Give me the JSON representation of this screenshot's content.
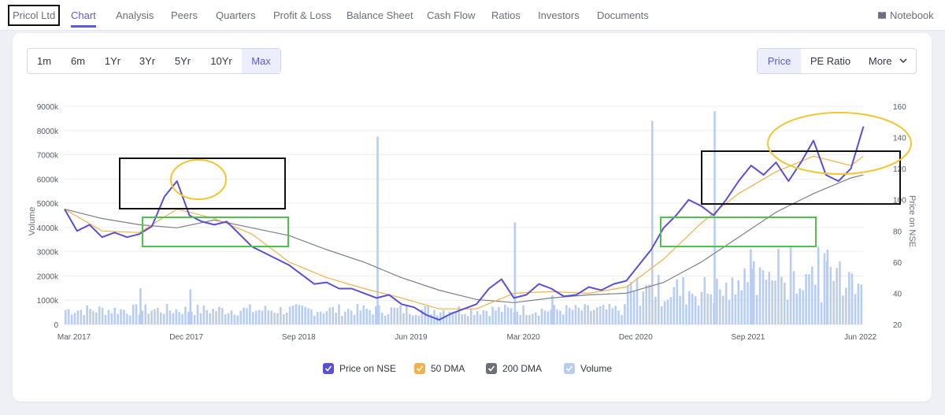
{
  "nav": {
    "brand": "Pricol Ltd",
    "items": [
      "Chart",
      "Analysis",
      "Peers",
      "Quarters",
      "Profit & Loss",
      "Balance Sheet",
      "Cash Flow",
      "Ratios",
      "Investors",
      "Documents"
    ],
    "active": "Chart",
    "notebook": "Notebook"
  },
  "periods": {
    "items": [
      "1m",
      "6m",
      "1Yr",
      "3Yr",
      "5Yr",
      "10Yr",
      "Max"
    ],
    "active": "Max"
  },
  "metrics": {
    "price": "Price",
    "pe": "PE Ratio",
    "more": "More"
  },
  "colors": {
    "accent": "#5b5cd6",
    "price": "#5a4fd8",
    "dma50": "#f2b24a",
    "dma200": "#7b8088",
    "volume": "#b9cdf3",
    "highlight_box": "#111111",
    "support_box": "#4cc44c",
    "circle": "#f2c631"
  },
  "icons": {
    "notebook": "book-icon",
    "more": "chevron-down-icon",
    "legend_check": "check-icon"
  },
  "chart_data": {
    "type": "line",
    "title": "",
    "ylabel_left": "Volume",
    "ylabel_right": "Price on NSE",
    "y_left_ticks": [
      "0",
      "1000k",
      "2000k",
      "3000k",
      "4000k",
      "5000k",
      "6000k",
      "7000k",
      "8000k",
      "9000k"
    ],
    "y_right_ticks": [
      "20",
      "40",
      "60",
      "80",
      "100",
      "120",
      "140",
      "160"
    ],
    "x_ticks": [
      "Mar 2017",
      "Dec 2017",
      "Sep 2018",
      "Jun 2019",
      "Mar 2020",
      "Dec 2020",
      "Sep 2021",
      "Jun 2022"
    ],
    "y_left_range": [
      0,
      9000000
    ],
    "y_right_range": [
      20,
      160
    ],
    "x_range_months": [
      "Mar 2017",
      "Jul 2022"
    ],
    "grid": true,
    "legend_position": "bottom",
    "series": [
      {
        "name": "Price on NSE",
        "x": [
          "Mar 2017",
          "Apr 2017",
          "May 2017",
          "Jun 2017",
          "Jul 2017",
          "Aug 2017",
          "Sep 2017",
          "Oct 2017",
          "Nov 2017",
          "Dec 2017",
          "Jan 2018",
          "Feb 2018",
          "Mar 2018",
          "Apr 2018",
          "May 2018",
          "Jun 2018",
          "Jul 2018",
          "Aug 2018",
          "Sep 2018",
          "Oct 2018",
          "Nov 2018",
          "Dec 2018",
          "Jan 2019",
          "Feb 2019",
          "Mar 2019",
          "Apr 2019",
          "May 2019",
          "Jun 2019",
          "Jul 2019",
          "Aug 2019",
          "Sep 2019",
          "Oct 2019",
          "Nov 2019",
          "Dec 2019",
          "Jan 2020",
          "Feb 2020",
          "Mar 2020",
          "Apr 2020",
          "May 2020",
          "Jun 2020",
          "Jul 2020",
          "Aug 2020",
          "Sep 2020",
          "Oct 2020",
          "Nov 2020",
          "Dec 2020",
          "Jan 2021",
          "Feb 2021",
          "Mar 2021",
          "Apr 2021",
          "May 2021",
          "Jun 2021",
          "Jul 2021",
          "Aug 2021",
          "Sep 2021",
          "Oct 2021",
          "Nov 2021",
          "Dec 2021",
          "Jan 2022",
          "Feb 2022",
          "Mar 2022",
          "Apr 2022",
          "May 2022",
          "Jun 2022",
          "Jul 2022"
        ],
        "values": [
          94,
          80,
          84,
          76,
          79,
          76,
          78,
          83,
          102,
          112,
          90,
          86,
          84,
          86,
          78,
          70,
          66,
          62,
          58,
          52,
          46,
          47,
          43,
          43,
          40,
          37,
          39,
          33,
          31,
          26,
          23,
          27,
          30,
          33,
          43,
          49,
          37,
          39,
          46,
          43,
          38,
          39,
          44,
          42,
          46,
          48,
          58,
          68,
          82,
          90,
          100,
          96,
          90,
          100,
          112,
          122,
          116,
          124,
          112,
          124,
          138,
          116,
          112,
          120,
          147
        ]
      },
      {
        "name": "50 DMA",
        "x": [
          "Mar 2017",
          "Jun 2017",
          "Sep 2017",
          "Dec 2017",
          "Mar 2018",
          "Jun 2018",
          "Sep 2018",
          "Dec 2018",
          "Mar 2019",
          "Jun 2019",
          "Sep 2019",
          "Dec 2019",
          "Mar 2020",
          "Jun 2020",
          "Sep 2020",
          "Dec 2020",
          "Mar 2021",
          "Jun 2021",
          "Sep 2021",
          "Dec 2021",
          "Mar 2022",
          "Jun 2022",
          "Jul 2022"
        ],
        "values": [
          94,
          80,
          79,
          94,
          88,
          78,
          60,
          50,
          43,
          37,
          30,
          30,
          40,
          41,
          40,
          44,
          62,
          85,
          104,
          118,
          128,
          122,
          128
        ]
      },
      {
        "name": "200 DMA",
        "x": [
          "Mar 2017",
          "Jun 2017",
          "Sep 2017",
          "Dec 2017",
          "Mar 2018",
          "Jun 2018",
          "Sep 2018",
          "Dec 2018",
          "Mar 2019",
          "Jun 2019",
          "Sep 2019",
          "Dec 2019",
          "Mar 2020",
          "Jun 2020",
          "Sep 2020",
          "Dec 2020",
          "Mar 2021",
          "Jun 2021",
          "Sep 2021",
          "Dec 2021",
          "Mar 2022",
          "Jun 2022",
          "Jul 2022"
        ],
        "values": [
          94,
          88,
          84,
          82,
          87,
          82,
          77,
          68,
          60,
          50,
          42,
          36,
          34,
          37,
          39,
          40,
          47,
          60,
          76,
          92,
          104,
          114,
          116
        ]
      },
      {
        "name": "Volume",
        "x": [
          "Sep 2017",
          "Jan 2018",
          "Apr 2019",
          "Mar 2020",
          "Jun 2020",
          "Feb 2021",
          "Jul 2021",
          "Oct 2021",
          "Apr 2022",
          "Jun 2022"
        ],
        "values": [
          1500000,
          1450000,
          7750000,
          4200000,
          1200000,
          8400000,
          8800000,
          2300000,
          2600000,
          2100000
        ]
      }
    ]
  }
}
